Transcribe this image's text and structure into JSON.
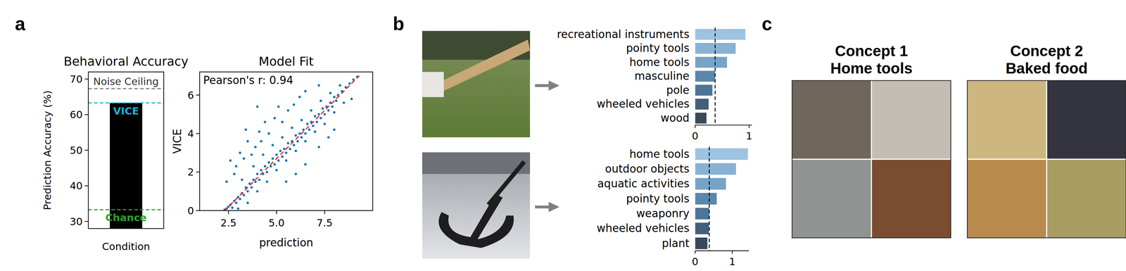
{
  "figure": {
    "panel_labels": [
      "a",
      "b",
      "c"
    ],
    "concepts": [
      {
        "title": "Concept 1",
        "name": "Home tools"
      },
      {
        "title": "Concept 2",
        "name": "Baked food"
      }
    ]
  },
  "chart_data": [
    {
      "type": "bar",
      "title": "Behavioral Accuracy",
      "categories": [
        null
      ],
      "values": [
        63.3
      ],
      "color": "#000000",
      "x_label": "Condition",
      "y_label": "Prediction Accuracy (%)",
      "ylim": [
        28,
        72
      ],
      "yticks": [
        30,
        40,
        50,
        60,
        70
      ],
      "reference_lines": [
        {
          "value": 67.3,
          "label": "Noise Ceiling",
          "color": "#7f7f7f"
        },
        {
          "value": 63.3,
          "label": "VICE",
          "color": "#17b4d8"
        },
        {
          "value": 33.3,
          "label": "Chance",
          "color": "#2ca02c"
        }
      ]
    },
    {
      "type": "scatter",
      "title": "Model Fit",
      "x_label": "prediction",
      "y_label": "VICE",
      "annotation": "Pearson's r: 0.94",
      "color": "#1f77b4",
      "x": [
        2.3,
        2.4,
        2.5,
        2.6,
        2.7,
        2.8,
        2.9,
        3.0,
        3.1,
        3.2,
        3.3,
        3.4,
        3.5,
        3.6,
        3.7,
        3.8,
        3.9,
        4.0,
        4.1,
        4.2,
        4.3,
        4.4,
        4.5,
        4.6,
        4.7,
        4.8,
        4.9,
        5.0,
        5.1,
        5.2,
        5.3,
        5.4,
        5.5,
        5.6,
        5.7,
        5.8,
        5.9,
        6.0,
        6.1,
        6.2,
        6.3,
        6.4,
        6.5,
        6.6,
        6.7,
        6.8,
        6.9,
        7.0,
        7.1,
        7.2,
        7.3,
        7.4,
        7.5,
        7.6,
        7.7,
        7.8,
        7.9,
        8.0,
        8.1,
        8.2,
        8.4,
        8.6,
        8.8,
        9.0,
        9.2,
        3.0,
        3.5,
        4.0,
        4.5,
        5.0,
        5.5,
        6.0,
        6.5,
        7.0,
        7.5,
        8.0,
        8.5,
        3.2,
        3.8,
        4.3,
        4.8,
        5.3,
        5.8,
        6.3,
        6.8,
        7.3,
        7.8,
        8.3,
        2.6,
        2.9,
        3.1,
        3.3,
        3.5,
        3.7,
        3.9,
        4.1,
        4.2,
        4.4,
        4.6,
        4.9,
        5.1,
        5.3,
        5.6,
        5.9,
        4.0,
        3.4,
        6.2,
        2.4,
        2.8,
        6.5,
        7.2,
        5.5,
        6.5,
        7.2,
        8.0,
        6.0,
        7.7,
        8.9
      ],
      "y": [
        0.05,
        0.1,
        0.2,
        0.3,
        0.15,
        0.5,
        0.4,
        0.7,
        0.6,
        0.9,
        0.8,
        1.2,
        1.0,
        1.4,
        1.2,
        1.6,
        1.5,
        1.9,
        1.6,
        2.1,
        1.9,
        2.3,
        2.0,
        2.5,
        2.3,
        2.7,
        2.4,
        2.9,
        2.6,
        3.1,
        2.8,
        3.2,
        3.0,
        3.5,
        3.2,
        3.6,
        3.4,
        3.9,
        3.6,
        4.0,
        3.8,
        4.2,
        4.0,
        4.5,
        4.2,
        4.6,
        4.4,
        4.9,
        4.6,
        5.0,
        4.8,
        5.3,
        5.0,
        5.4,
        5.2,
        5.6,
        5.4,
        5.9,
        5.7,
        6.0,
        6.2,
        6.4,
        6.6,
        6.8,
        6.95,
        0.1,
        0.4,
        1.0,
        1.5,
        2.1,
        2.6,
        3.1,
        3.6,
        4.1,
        4.5,
        5.1,
        5.6,
        1.6,
        2.3,
        2.9,
        3.4,
        3.8,
        4.3,
        4.7,
        5.2,
        5.7,
        6.1,
        6.5,
        2.6,
        2.3,
        3.0,
        2.7,
        3.6,
        2.9,
        3.3,
        4.1,
        3.6,
        4.6,
        4.0,
        4.8,
        5.4,
        4.6,
        5.2,
        5.5,
        5.4,
        4.2,
        5.9,
        1.5,
        1.9,
        6.2,
        6.5,
        1.5,
        2.4,
        3.3,
        4.2,
        1.9,
        3.8,
        5.8
      ],
      "xlim": [
        1.0,
        10.0
      ],
      "xticks": [
        2.5,
        {
          "value": 5,
          "label": "5.0"
        },
        7.5
      ],
      "ylim": [
        0,
        7.2
      ],
      "yticks": [
        0,
        2,
        4,
        6
      ],
      "fit_line": {
        "x": [
          2.3,
          9.3
        ],
        "y": [
          0,
          7
        ],
        "color": "#d62728",
        "line_style": "dashed"
      }
    },
    {
      "type": "bar",
      "orientation": "horizontal",
      "categories": [
        "recreational instruments",
        "pointy tools",
        "home tools",
        "masculine",
        "pole",
        "wheeled vehicles",
        "wood"
      ],
      "values": [
        0.93,
        0.75,
        0.59,
        0.37,
        0.32,
        0.25,
        0.21
      ],
      "colors": [
        "#9dc3e2",
        "#88b2d4",
        "#76a3c6",
        "#5c87ac",
        "#4e7597",
        "#43607b",
        "#39495a"
      ],
      "xlim": [
        0,
        1.05
      ],
      "xticks": [
        0,
        1
      ],
      "threshold": 0.37
    },
    {
      "type": "bar",
      "orientation": "horizontal",
      "categories": [
        "home tools",
        "outdoor objects",
        "aquatic activities",
        "pointy tools",
        "weaponry",
        "wheeled vehicles",
        "plant"
      ],
      "values": [
        1.42,
        1.1,
        0.83,
        0.58,
        0.38,
        0.37,
        0.33
      ],
      "colors": [
        "#9dc3e2",
        "#88b2d4",
        "#76a3c6",
        "#5c87ac",
        "#4e7597",
        "#43607b",
        "#39495a"
      ],
      "xlim": [
        0,
        1.45
      ],
      "xticks": [
        0,
        1
      ],
      "threshold": 0.38
    }
  ]
}
